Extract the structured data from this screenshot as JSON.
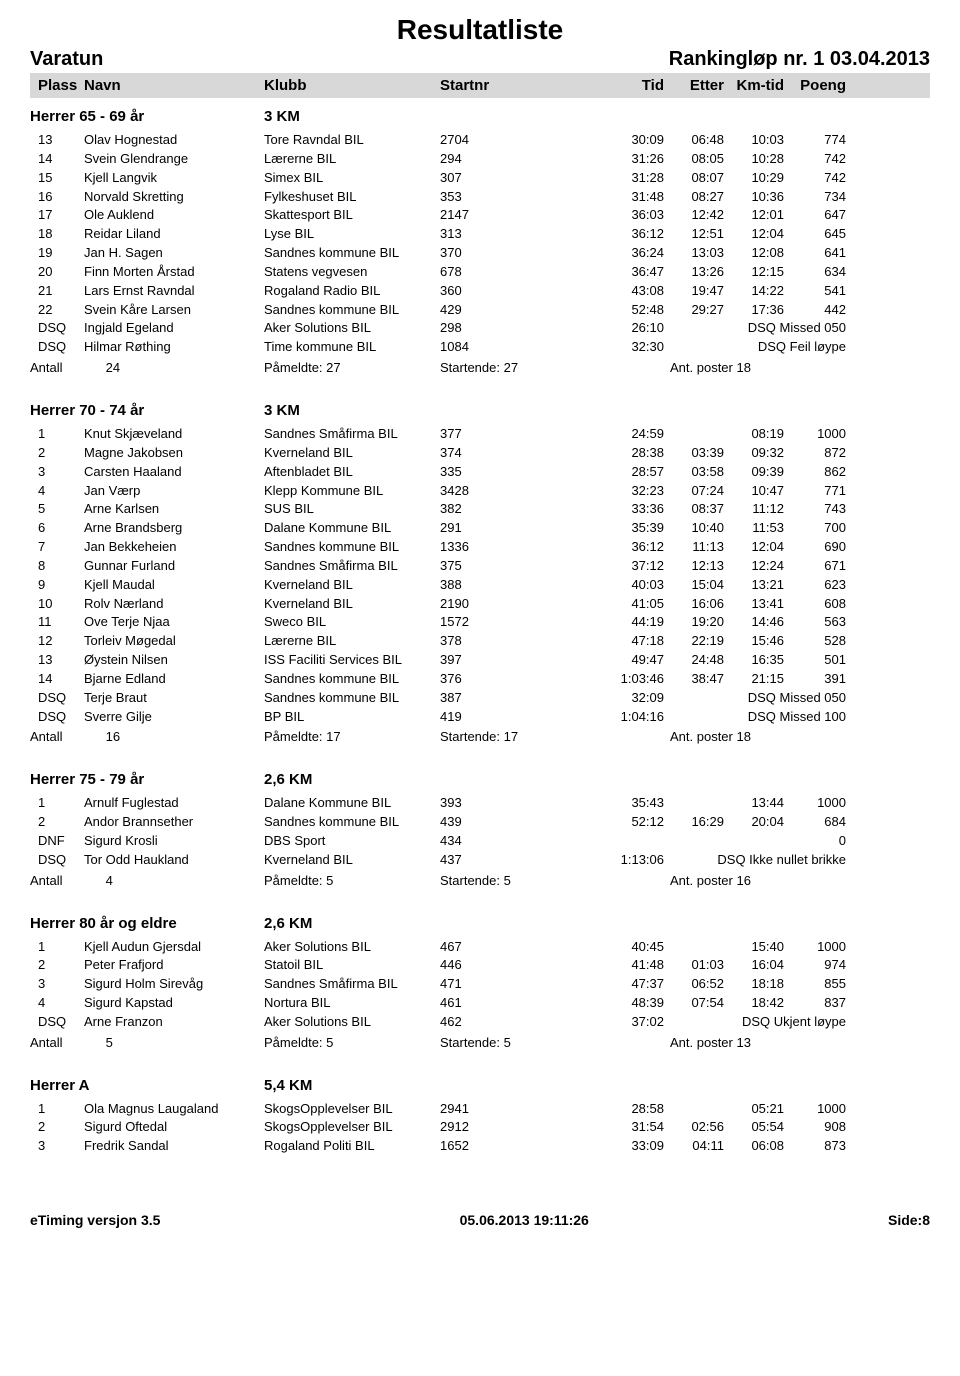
{
  "title": "Resultatliste",
  "event": "Varatun",
  "race_info": "Rankingløp nr. 1 03.04.2013",
  "columns": {
    "plass": "Plass",
    "navn": "Navn",
    "klubb": "Klubb",
    "startnr": "Startnr",
    "tid": "Tid",
    "etter": "Etter",
    "kmtid": "Km-tid",
    "poeng": "Poeng"
  },
  "labels": {
    "antall": "Antall",
    "pameldte": "Påmeldte:",
    "startende": "Startende:",
    "antposter": "Ant. poster"
  },
  "footer": {
    "left": "eTiming versjon 3.5",
    "center": "05.06.2013 19:11:26",
    "right": "Side:8"
  },
  "groups": [
    {
      "name": "Herrer 65 - 69 år",
      "distance": "3 KM",
      "rows": [
        {
          "plass": "13",
          "navn": "Olav Hognestad",
          "klubb": "Tore Ravndal BIL",
          "startnr": "2704",
          "tid": "30:09",
          "etter": "06:48",
          "kmtid": "10:03",
          "poeng": "774"
        },
        {
          "plass": "14",
          "navn": "Svein Glendrange",
          "klubb": "Lærerne BIL",
          "startnr": "294",
          "tid": "31:26",
          "etter": "08:05",
          "kmtid": "10:28",
          "poeng": "742"
        },
        {
          "plass": "15",
          "navn": "Kjell Langvik",
          "klubb": "Simex BIL",
          "startnr": "307",
          "tid": "31:28",
          "etter": "08:07",
          "kmtid": "10:29",
          "poeng": "742"
        },
        {
          "plass": "16",
          "navn": "Norvald Skretting",
          "klubb": "Fylkeshuset BIL",
          "startnr": "353",
          "tid": "31:48",
          "etter": "08:27",
          "kmtid": "10:36",
          "poeng": "734"
        },
        {
          "plass": "17",
          "navn": "Ole Auklend",
          "klubb": "Skattesport BIL",
          "startnr": "2147",
          "tid": "36:03",
          "etter": "12:42",
          "kmtid": "12:01",
          "poeng": "647"
        },
        {
          "plass": "18",
          "navn": "Reidar Liland",
          "klubb": "Lyse BIL",
          "startnr": "313",
          "tid": "36:12",
          "etter": "12:51",
          "kmtid": "12:04",
          "poeng": "645"
        },
        {
          "plass": "19",
          "navn": "Jan H. Sagen",
          "klubb": "Sandnes kommune BIL",
          "startnr": "370",
          "tid": "36:24",
          "etter": "13:03",
          "kmtid": "12:08",
          "poeng": "641"
        },
        {
          "plass": "20",
          "navn": "Finn Morten Årstad",
          "klubb": "Statens vegvesen",
          "startnr": "678",
          "tid": "36:47",
          "etter": "13:26",
          "kmtid": "12:15",
          "poeng": "634"
        },
        {
          "plass": "21",
          "navn": "Lars Ernst Ravndal",
          "klubb": "Rogaland Radio BIL",
          "startnr": "360",
          "tid": "43:08",
          "etter": "19:47",
          "kmtid": "14:22",
          "poeng": "541"
        },
        {
          "plass": "22",
          "navn": "Svein Kåre Larsen",
          "klubb": "Sandnes kommune BIL",
          "startnr": "429",
          "tid": "52:48",
          "etter": "29:27",
          "kmtid": "17:36",
          "poeng": "442"
        },
        {
          "plass": "DSQ",
          "navn": "Ingjald Egeland",
          "klubb": "Aker Solutions BIL",
          "startnr": "298",
          "tid": "26:10",
          "note": "DSQ Missed 050"
        },
        {
          "plass": "DSQ",
          "navn": "Hilmar Røthing",
          "klubb": "Time kommune BIL",
          "startnr": "1084",
          "tid": "32:30",
          "note": "DSQ Feil løype"
        }
      ],
      "summary": {
        "antall": "24",
        "pameldte": "27",
        "startende": "27",
        "poster": "18"
      }
    },
    {
      "name": "Herrer 70 - 74 år",
      "distance": "3 KM",
      "rows": [
        {
          "plass": "1",
          "navn": "Knut Skjæveland",
          "klubb": "Sandnes Småfirma BIL",
          "startnr": "377",
          "tid": "24:59",
          "etter": "",
          "kmtid": "08:19",
          "poeng": "1000"
        },
        {
          "plass": "2",
          "navn": "Magne Jakobsen",
          "klubb": "Kverneland BIL",
          "startnr": "374",
          "tid": "28:38",
          "etter": "03:39",
          "kmtid": "09:32",
          "poeng": "872"
        },
        {
          "plass": "3",
          "navn": "Carsten Haaland",
          "klubb": "Aftenbladet BIL",
          "startnr": "335",
          "tid": "28:57",
          "etter": "03:58",
          "kmtid": "09:39",
          "poeng": "862"
        },
        {
          "plass": "4",
          "navn": "Jan Værp",
          "klubb": "Klepp Kommune BIL",
          "startnr": "3428",
          "tid": "32:23",
          "etter": "07:24",
          "kmtid": "10:47",
          "poeng": "771"
        },
        {
          "plass": "5",
          "navn": "Arne Karlsen",
          "klubb": "SUS BIL",
          "startnr": "382",
          "tid": "33:36",
          "etter": "08:37",
          "kmtid": "11:12",
          "poeng": "743"
        },
        {
          "plass": "6",
          "navn": "Arne Brandsberg",
          "klubb": "Dalane Kommune BIL",
          "startnr": "291",
          "tid": "35:39",
          "etter": "10:40",
          "kmtid": "11:53",
          "poeng": "700"
        },
        {
          "plass": "7",
          "navn": "Jan Bekkeheien",
          "klubb": "Sandnes kommune BIL",
          "startnr": "1336",
          "tid": "36:12",
          "etter": "11:13",
          "kmtid": "12:04",
          "poeng": "690"
        },
        {
          "plass": "8",
          "navn": "Gunnar Furland",
          "klubb": "Sandnes Småfirma BIL",
          "startnr": "375",
          "tid": "37:12",
          "etter": "12:13",
          "kmtid": "12:24",
          "poeng": "671"
        },
        {
          "plass": "9",
          "navn": "Kjell Maudal",
          "klubb": "Kverneland BIL",
          "startnr": "388",
          "tid": "40:03",
          "etter": "15:04",
          "kmtid": "13:21",
          "poeng": "623"
        },
        {
          "plass": "10",
          "navn": "Rolv Nærland",
          "klubb": "Kverneland BIL",
          "startnr": "2190",
          "tid": "41:05",
          "etter": "16:06",
          "kmtid": "13:41",
          "poeng": "608"
        },
        {
          "plass": "11",
          "navn": "Ove Terje Njaa",
          "klubb": "Sweco BIL",
          "startnr": "1572",
          "tid": "44:19",
          "etter": "19:20",
          "kmtid": "14:46",
          "poeng": "563"
        },
        {
          "plass": "12",
          "navn": "Torleiv Møgedal",
          "klubb": "Lærerne BIL",
          "startnr": "378",
          "tid": "47:18",
          "etter": "22:19",
          "kmtid": "15:46",
          "poeng": "528"
        },
        {
          "plass": "13",
          "navn": "Øystein Nilsen",
          "klubb": "ISS Faciliti Services BIL",
          "startnr": "397",
          "tid": "49:47",
          "etter": "24:48",
          "kmtid": "16:35",
          "poeng": "501"
        },
        {
          "plass": "14",
          "navn": "Bjarne Edland",
          "klubb": "Sandnes kommune BIL",
          "startnr": "376",
          "tid": "1:03:46",
          "etter": "38:47",
          "kmtid": "21:15",
          "poeng": "391"
        },
        {
          "plass": "DSQ",
          "navn": "Terje Braut",
          "klubb": "Sandnes kommune BIL",
          "startnr": "387",
          "tid": "32:09",
          "note": "DSQ Missed 050"
        },
        {
          "plass": "DSQ",
          "navn": "Sverre Gilje",
          "klubb": "BP BIL",
          "startnr": "419",
          "tid": "1:04:16",
          "note": "DSQ Missed 100"
        }
      ],
      "summary": {
        "antall": "16",
        "pameldte": "17",
        "startende": "17",
        "poster": "18"
      }
    },
    {
      "name": "Herrer 75 - 79 år",
      "distance": "2,6 KM",
      "rows": [
        {
          "plass": "1",
          "navn": "Arnulf Fuglestad",
          "klubb": "Dalane Kommune BIL",
          "startnr": "393",
          "tid": "35:43",
          "etter": "",
          "kmtid": "13:44",
          "poeng": "1000"
        },
        {
          "plass": "2",
          "navn": "Andor Brannsether",
          "klubb": "Sandnes kommune BIL",
          "startnr": "439",
          "tid": "52:12",
          "etter": "16:29",
          "kmtid": "20:04",
          "poeng": "684"
        },
        {
          "plass": "DNF",
          "navn": "Sigurd Krosli",
          "klubb": "DBS Sport",
          "startnr": "434",
          "tid": "",
          "etter": "",
          "kmtid": "",
          "poeng": "0"
        },
        {
          "plass": "DSQ",
          "navn": "Tor Odd Haukland",
          "klubb": "Kverneland BIL",
          "startnr": "437",
          "tid": "1:13:06",
          "note": "DSQ Ikke nullet brikke"
        }
      ],
      "summary": {
        "antall": "4",
        "pameldte": "5",
        "startende": "5",
        "poster": "16"
      }
    },
    {
      "name": "Herrer 80 år og eldre",
      "distance": "2,6 KM",
      "rows": [
        {
          "plass": "1",
          "navn": "Kjell Audun Gjersdal",
          "klubb": "Aker Solutions BIL",
          "startnr": "467",
          "tid": "40:45",
          "etter": "",
          "kmtid": "15:40",
          "poeng": "1000"
        },
        {
          "plass": "2",
          "navn": "Peter Frafjord",
          "klubb": "Statoil BIL",
          "startnr": "446",
          "tid": "41:48",
          "etter": "01:03",
          "kmtid": "16:04",
          "poeng": "974"
        },
        {
          "plass": "3",
          "navn": "Sigurd Holm Sirevåg",
          "klubb": "Sandnes Småfirma BIL",
          "startnr": "471",
          "tid": "47:37",
          "etter": "06:52",
          "kmtid": "18:18",
          "poeng": "855"
        },
        {
          "plass": "4",
          "navn": "Sigurd Kapstad",
          "klubb": "Nortura BIL",
          "startnr": "461",
          "tid": "48:39",
          "etter": "07:54",
          "kmtid": "18:42",
          "poeng": "837"
        },
        {
          "plass": "DSQ",
          "navn": "Arne Franzon",
          "klubb": "Aker Solutions BIL",
          "startnr": "462",
          "tid": "37:02",
          "note": "DSQ Ukjent løype"
        }
      ],
      "summary": {
        "antall": "5",
        "pameldte": "5",
        "startende": "5",
        "poster": "13"
      }
    },
    {
      "name": "Herrer A",
      "distance": "5,4 KM",
      "rows": [
        {
          "plass": "1",
          "navn": "Ola Magnus Laugaland",
          "klubb": "SkogsOpplevelser BIL",
          "startnr": "2941",
          "tid": "28:58",
          "etter": "",
          "kmtid": "05:21",
          "poeng": "1000"
        },
        {
          "plass": "2",
          "navn": "Sigurd Oftedal",
          "klubb": "SkogsOpplevelser BIL",
          "startnr": "2912",
          "tid": "31:54",
          "etter": "02:56",
          "kmtid": "05:54",
          "poeng": "908"
        },
        {
          "plass": "3",
          "navn": "Fredrik Sandal",
          "klubb": "Rogaland Politi BIL",
          "startnr": "1652",
          "tid": "33:09",
          "etter": "04:11",
          "kmtid": "06:08",
          "poeng": "873"
        }
      ]
    }
  ]
}
